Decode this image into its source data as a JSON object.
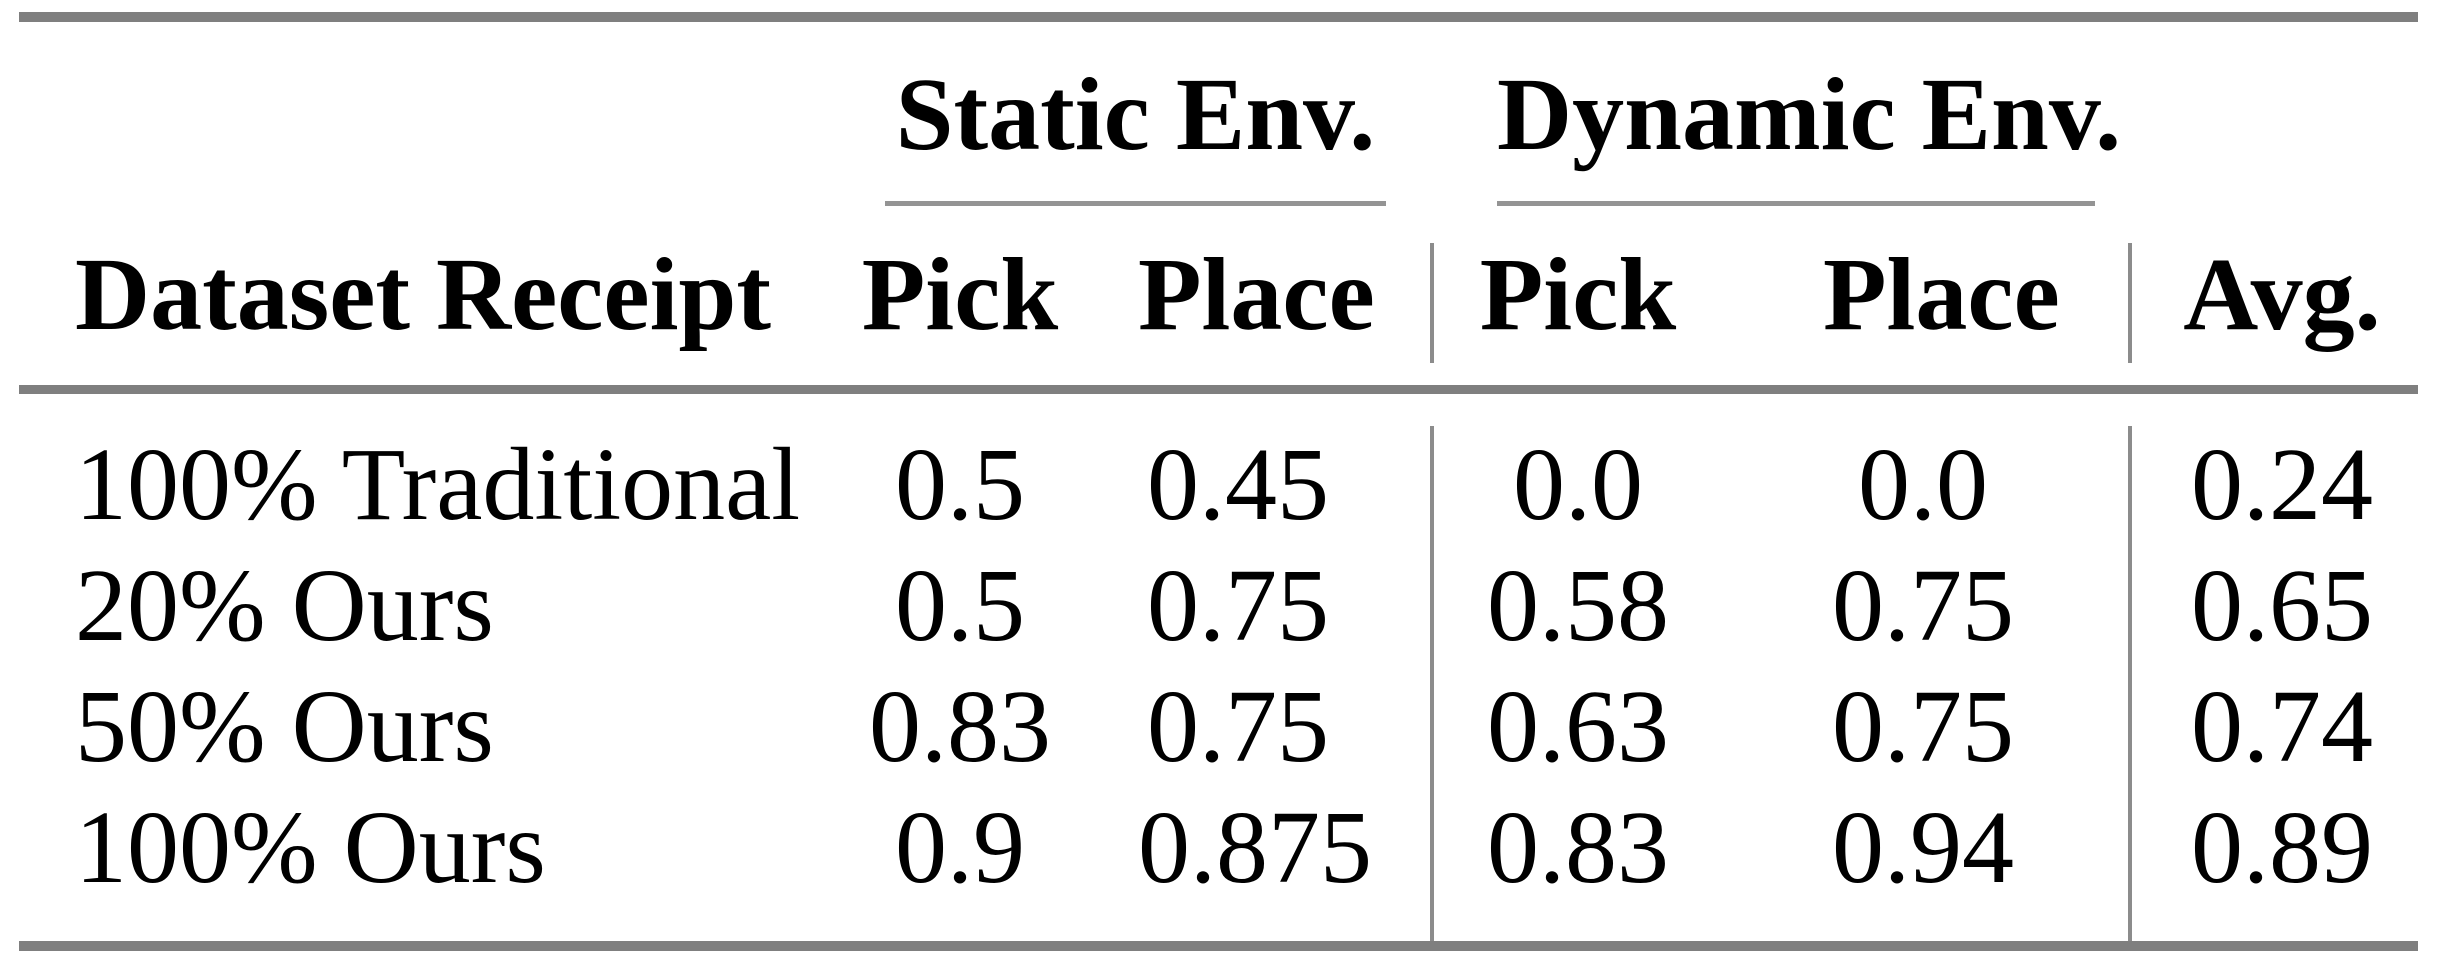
{
  "colors": {
    "background": "#ffffff",
    "text": "#000000",
    "thick_rule_gray": "#7f7f7f",
    "thin_rule_gray": "#949494",
    "vertical_rule_gray": "#8c8c8c"
  },
  "table": {
    "group_headers": {
      "static": "Static Env.",
      "dynamic": "Dynamic Env."
    },
    "column_headers": {
      "stub": "Dataset Receipt",
      "static_pick": "Pick",
      "static_place": "Place",
      "dynamic_pick": "Pick",
      "dynamic_place": "Place",
      "avg": "Avg."
    },
    "rows": [
      {
        "label": "100% Traditional",
        "static_pick": "0.5",
        "static_place": "0.45",
        "dynamic_pick": "0.0",
        "dynamic_place": "0.0",
        "avg": "0.24"
      },
      {
        "label": "20% Ours",
        "static_pick": "0.5",
        "static_place": "0.75",
        "dynamic_pick": "0.58",
        "dynamic_place": "0.75",
        "avg": "0.65"
      },
      {
        "label": "50% Ours",
        "static_pick": "0.83",
        "static_place": "0.75",
        "dynamic_pick": "0.63",
        "dynamic_place": "0.75",
        "avg": "0.74"
      },
      {
        "label": "100% Ours",
        "static_pick": "0.9",
        "static_place": "0.875",
        "dynamic_pick": "0.83",
        "dynamic_place": "0.94",
        "avg": "0.89"
      }
    ]
  },
  "chart_data": {
    "type": "table",
    "title": "",
    "column_groups": [
      "",
      "Static Env.",
      "Static Env.",
      "Dynamic Env.",
      "Dynamic Env.",
      ""
    ],
    "columns": [
      "Dataset Receipt",
      "Pick",
      "Place",
      "Pick",
      "Place",
      "Avg."
    ],
    "rows": [
      [
        "100% Traditional",
        0.5,
        0.45,
        0.0,
        0.0,
        0.24
      ],
      [
        "20% Ours",
        0.5,
        0.75,
        0.58,
        0.75,
        0.65
      ],
      [
        "50% Ours",
        0.83,
        0.75,
        0.63,
        0.75,
        0.74
      ],
      [
        "100% Ours",
        0.9,
        0.875,
        0.83,
        0.94,
        0.89
      ]
    ]
  }
}
